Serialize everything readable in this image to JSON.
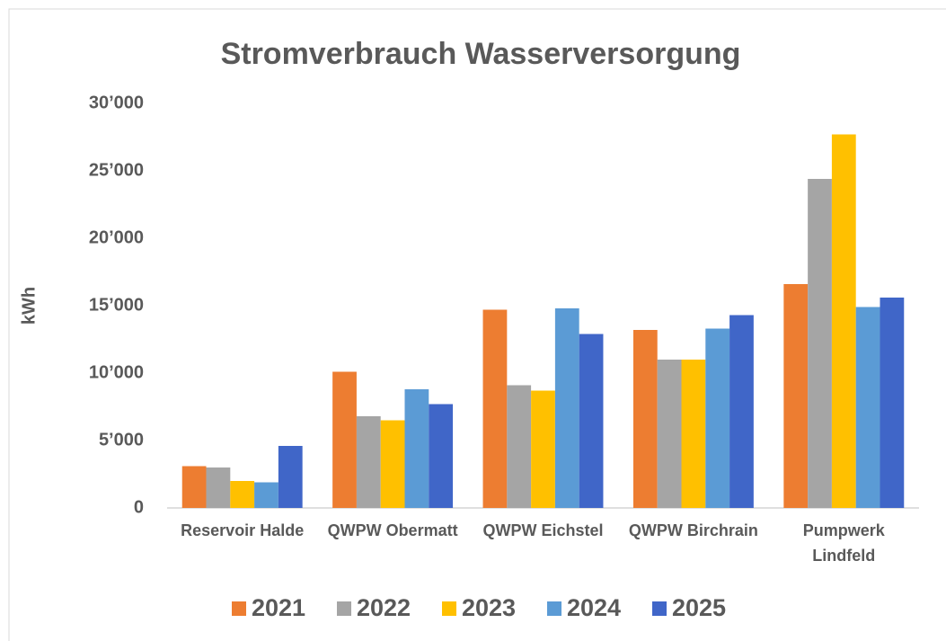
{
  "chart_data": {
    "type": "bar",
    "title": "Stromverbrauch Wasserversorgung",
    "ylabel": "kWh",
    "categories": [
      "Reservoir Halde",
      "QWPW Obermatt",
      "QWPW Eichstel",
      "QWPW Birchrain",
      "Pumpwerk Lindfeld"
    ],
    "series": [
      {
        "name": "2021",
        "color": "#ed7d31",
        "values": [
          3100,
          10100,
          14700,
          13200,
          16600
        ]
      },
      {
        "name": "2022",
        "color": "#a5a5a5",
        "values": [
          3000,
          6800,
          9100,
          11000,
          24400
        ]
      },
      {
        "name": "2023",
        "color": "#ffc000",
        "values": [
          2000,
          6500,
          8700,
          11000,
          27700
        ]
      },
      {
        "name": "2024",
        "color": "#5b9bd5",
        "values": [
          1900,
          8800,
          14800,
          13300,
          14900
        ]
      },
      {
        "name": "2025",
        "color": "#4066c8",
        "values": [
          4600,
          7700,
          12900,
          14300,
          15600
        ]
      }
    ],
    "ylim": [
      0,
      30000
    ],
    "yticks": [
      0,
      {
        "value": 5000,
        "label": "5’000"
      },
      {
        "value": 10000,
        "label": "10’000"
      },
      {
        "value": 15000,
        "label": "15’000"
      },
      {
        "value": 20000,
        "label": "20’000"
      },
      {
        "value": 25000,
        "label": "25’000"
      },
      {
        "value": 30000,
        "label": "30’000"
      }
    ],
    "grid": false,
    "legend": "bottom"
  }
}
